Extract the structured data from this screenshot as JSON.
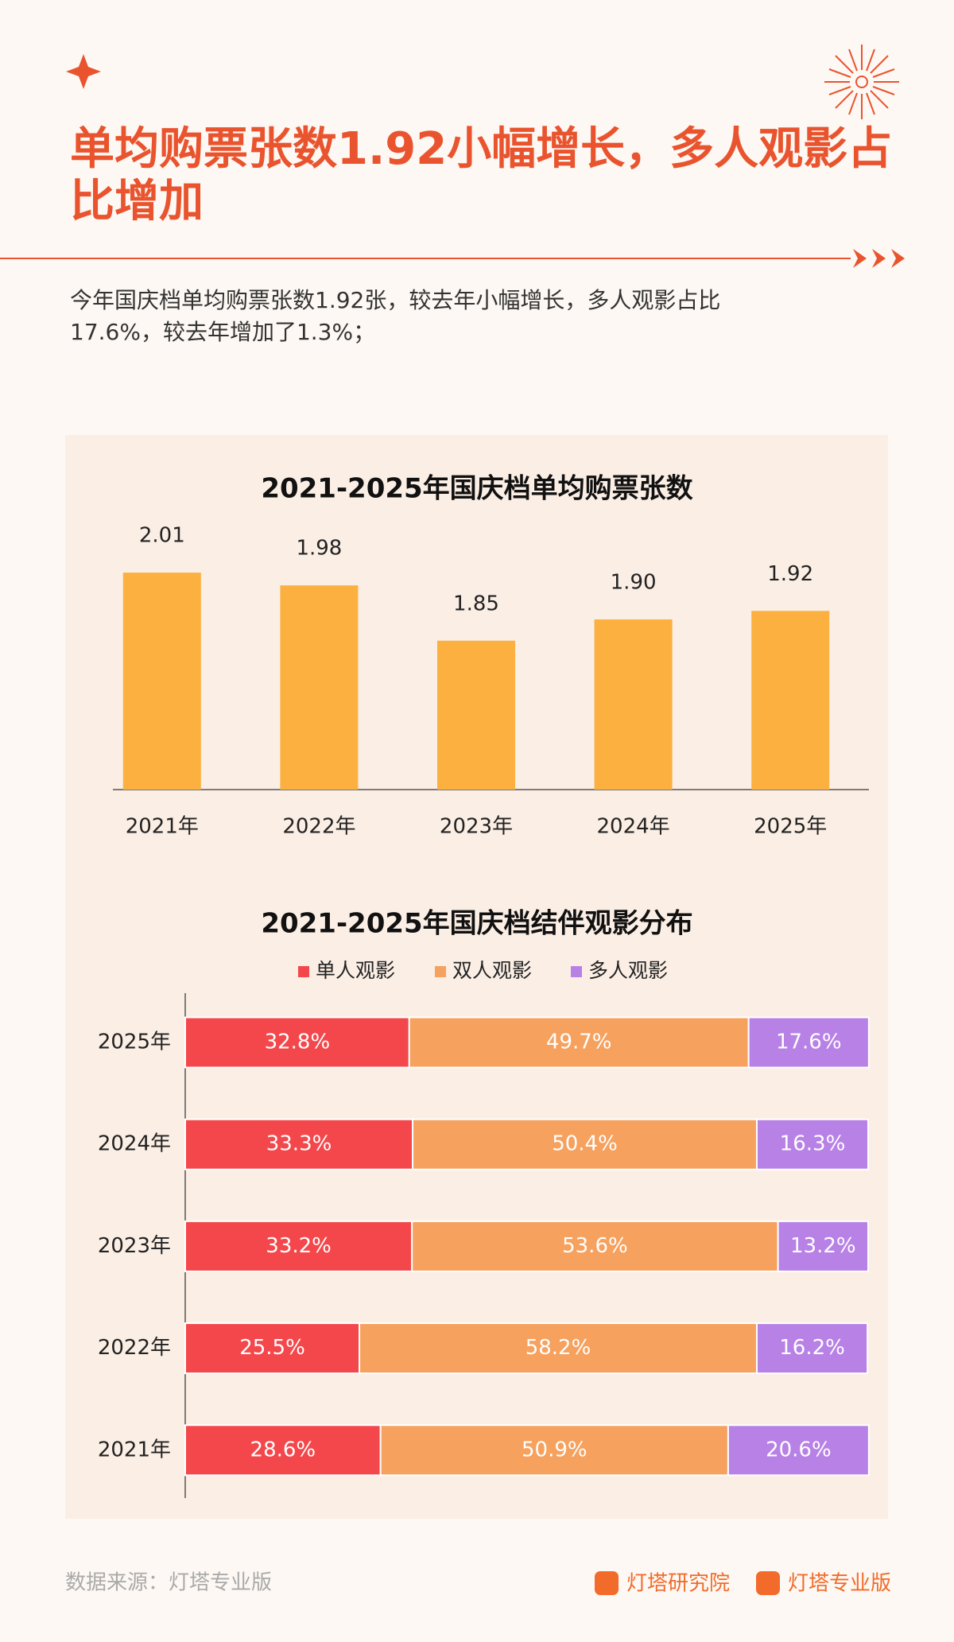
{
  "header": {
    "title": [
      "单均购票张数1.92小幅增长，多人观影占",
      "比增加"
    ],
    "description": [
      "今年国庆档单均购票张数1.92张，较去年小幅增长，多人观影占比",
      "17.6%，较去年增加了1.3%；"
    ]
  },
  "chart_data": [
    {
      "type": "bar",
      "title": "2021-2025年国庆档单均购票张数",
      "categories": [
        "2021年",
        "2022年",
        "2023年",
        "2024年",
        "2025年"
      ],
      "values": [
        2.01,
        1.98,
        1.85,
        1.9,
        1.92
      ],
      "value_labels": [
        "2.01",
        "1.98",
        "1.85",
        "1.90",
        "1.92"
      ],
      "color": "#fbb040",
      "ylim": [
        1.5,
        2.1
      ]
    },
    {
      "type": "stacked_barh",
      "title": "2021-2025年国庆档结伴观影分布",
      "categories": [
        "2025年",
        "2024年",
        "2023年",
        "2022年",
        "2021年"
      ],
      "xlim": [
        0,
        100
      ],
      "series": [
        {
          "name": "单人观影",
          "color": "#f4474b",
          "values": [
            32.8,
            33.3,
            33.2,
            25.5,
            28.6
          ],
          "value_labels": [
            "32.8%",
            "33.3%",
            "33.2%",
            "25.5%",
            "28.6%"
          ]
        },
        {
          "name": "双人观影",
          "color": "#f6a15e",
          "values": [
            49.7,
            50.4,
            53.6,
            58.2,
            50.9
          ],
          "value_labels": [
            "49.7%",
            "50.4%",
            "53.6%",
            "58.2%",
            "50.9%"
          ]
        },
        {
          "name": "多人观影",
          "color": "#b781e6",
          "values": [
            17.6,
            16.3,
            13.2,
            16.2,
            20.6
          ],
          "value_labels": [
            "17.6%",
            "16.3%",
            "13.2%",
            "16.2%",
            "20.6%"
          ]
        }
      ]
    }
  ],
  "footer": {
    "source": "数据来源：灯塔专业版",
    "logo1": "灯塔研究院",
    "logo2": "灯塔专业版"
  }
}
